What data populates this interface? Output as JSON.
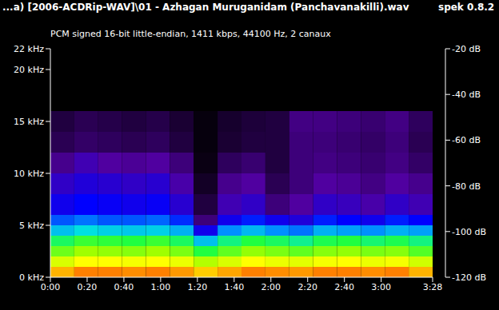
{
  "chart_data": {
    "type": "heatmap",
    "title": "...a) [2006-ACDRip-WAV]\\01 - Azhagan Muruganidam (Panchavanakilli).wav",
    "subtitle": "PCM signed 16-bit little-endian, 1411 kbps, 44100 Hz, 2 canaux",
    "annotations": [
      "spek 0.8.2"
    ],
    "x_bins": [
      0,
      13,
      26,
      39,
      52,
      65,
      78,
      91,
      104,
      117,
      130,
      143,
      156,
      169,
      182,
      195,
      208
    ],
    "y_bins": [
      0,
      1,
      2,
      3,
      4,
      5,
      6,
      8,
      10,
      12,
      14,
      16,
      22
    ],
    "cells": [
      [
        -34,
        -30,
        -30,
        -31,
        -30,
        -32,
        -36,
        -33,
        -30,
        -31,
        -32,
        -30,
        -30,
        -31,
        -30,
        -34
      ],
      [
        -44,
        -40,
        -40,
        -41,
        -40,
        -42,
        -48,
        -44,
        -40,
        -42,
        -43,
        -41,
        -40,
        -42,
        -41,
        -45
      ],
      [
        -54,
        -50,
        -51,
        -52,
        -50,
        -53,
        -60,
        -55,
        -51,
        -53,
        -55,
        -52,
        -51,
        -53,
        -52,
        -56
      ],
      [
        -62,
        -58,
        -59,
        -60,
        -58,
        -62,
        -74,
        -64,
        -60,
        -62,
        -65,
        -61,
        -60,
        -63,
        -61,
        -64
      ],
      [
        -74,
        -70,
        -72,
        -73,
        -72,
        -76,
        -92,
        -80,
        -75,
        -80,
        -82,
        -76,
        -78,
        -80,
        -76,
        -78
      ],
      [
        -84,
        -82,
        -84,
        -84,
        -83,
        -87,
        -104,
        -92,
        -88,
        -92,
        -94,
        -88,
        -90,
        -92,
        -88,
        -90
      ],
      [
        -92,
        -90,
        -91,
        -92,
        -91,
        -95,
        -110,
        -98,
        -96,
        -104,
        -100,
        -96,
        -97,
        -99,
        -96,
        -98
      ],
      [
        -96,
        -94,
        -95,
        -96,
        -95,
        -99,
        -114,
        -102,
        -100,
        -108,
        -104,
        -100,
        -101,
        -103,
        -100,
        -102
      ],
      [
        -102,
        -98,
        -100,
        -101,
        -100,
        -104,
        -117,
        -107,
        -105,
        -110,
        -104,
        -103,
        -104,
        -105,
        -103,
        -106
      ],
      [
        -108,
        -106,
        -107,
        -108,
        -107,
        -110,
        -118,
        -112,
        -110,
        -110,
        -104,
        -104,
        -105,
        -106,
        -104,
        -108
      ],
      [
        -110,
        -108,
        -109,
        -110,
        -109,
        -112,
        -118,
        -113,
        -111,
        -110,
        -103,
        -103,
        -104,
        -105,
        -103,
        -107
      ],
      [
        -120,
        -120,
        -120,
        -120,
        -120,
        -120,
        -120,
        -120,
        -120,
        -120,
        -120,
        -120,
        -120,
        -120,
        -120,
        -120
      ]
    ],
    "xlim": [
      0,
      208
    ],
    "xticks": [
      {
        "value": 0,
        "label": "0:00"
      },
      {
        "value": 20,
        "label": "0:20"
      },
      {
        "value": 40,
        "label": "0:40"
      },
      {
        "value": 60,
        "label": "1:00"
      },
      {
        "value": 80,
        "label": "1:20"
      },
      {
        "value": 100,
        "label": "1:40"
      },
      {
        "value": 120,
        "label": "2:00"
      },
      {
        "value": 140,
        "label": "2:20"
      },
      {
        "value": 160,
        "label": "2:40"
      },
      {
        "value": 180,
        "label": "3:00"
      },
      {
        "value": 208,
        "label": "3:28"
      }
    ],
    "ylim": [
      0,
      22
    ],
    "yticks": [
      {
        "value": 0,
        "label": "0 kHz"
      },
      {
        "value": 5,
        "label": "5 kHz"
      },
      {
        "value": 10,
        "label": "10 kHz"
      },
      {
        "value": 15,
        "label": "15 kHz"
      },
      {
        "value": 20,
        "label": "20 kHz"
      },
      {
        "value": 22,
        "label": "22 kHz"
      }
    ],
    "colorbar": {
      "range": [
        -120,
        -20
      ],
      "ticks": [
        {
          "value": -20,
          "label": "-20 dB"
        },
        {
          "value": -40,
          "label": "-40 dB"
        },
        {
          "value": -60,
          "label": "-60 dB"
        },
        {
          "value": -80,
          "label": "-80 dB"
        },
        {
          "value": -100,
          "label": "-100 dB"
        },
        {
          "value": -120,
          "label": "-120 dB"
        }
      ]
    },
    "grid": false
  }
}
